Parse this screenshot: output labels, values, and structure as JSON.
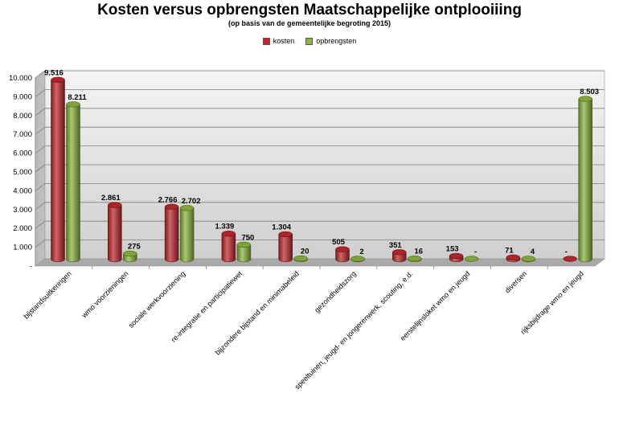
{
  "chart_data": {
    "type": "bar",
    "title": "Kosten versus opbrengsten Maatschappelijke ontplooiiing",
    "subtitle": "(op basis van de gemeentelijke begroting 2015)",
    "categories": [
      "bijstandsuitkeringen",
      "wmo voorzieningen",
      "sociale werkvoorziening",
      "re-integratie en participatiewet",
      "bijzondere bijstand en minimabeleid",
      "gezondheidszorg",
      "speeltuinen, jeugd- en jongerenwerk, scouting, e.d.",
      "eerstelijnsloket wmo en jeugd",
      "diversen",
      "rijksbijdrage wmo en jeugd"
    ],
    "series": [
      {
        "name": "kosten",
        "color": "#c0282d",
        "values": [
          9516,
          2861,
          2766,
          1339,
          1304,
          505,
          351,
          153,
          71,
          0
        ],
        "labels": [
          "9.516",
          "2.861",
          "2.766",
          "1.339",
          "1.304",
          "505",
          "351",
          "153",
          "71",
          "-"
        ]
      },
      {
        "name": "opbrengsten",
        "color": "#8cb63c",
        "values": [
          8211,
          275,
          2702,
          750,
          20,
          2,
          16,
          0,
          4,
          8503
        ],
        "labels": [
          "8.211",
          "275",
          "2.702",
          "750",
          "20",
          "2",
          "16",
          "-",
          "4",
          "8.503"
        ]
      }
    ],
    "ylim": [
      0,
      10000
    ],
    "yticks": [
      "-",
      "1.000",
      "2.000",
      "3.000",
      "4.000",
      "5.000",
      "6.000",
      "7.000",
      "8.000",
      "9.000",
      "10.000"
    ],
    "grid": true,
    "legend_position": "top"
  }
}
